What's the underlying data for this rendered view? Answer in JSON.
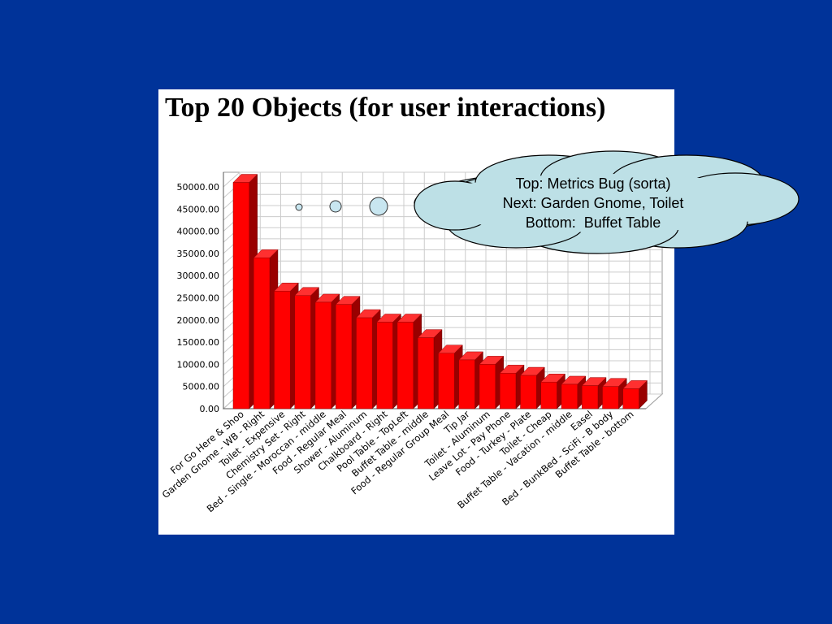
{
  "background_color": "#003399",
  "callout": {
    "lines": [
      "Top: Metrics Bug (sorta)",
      "Next: Garden Gnome, Toilet",
      "Bottom:  Buffet Table"
    ],
    "fill_color": "#bde0e6"
  },
  "chart_data": {
    "type": "bar",
    "title": "Top 20 Objects (for user interactions)",
    "xlabel": "",
    "ylabel": "",
    "ylim": [
      0,
      50000
    ],
    "grid": true,
    "style": "3d",
    "bar_color": "#ff0000",
    "y_tick_labels": [
      "0.00",
      "5000.00",
      "10000.00",
      "15000.00",
      "20000.00",
      "25000.00",
      "30000.00",
      "35000.00",
      "40000.00",
      "45000.00",
      "50000.00"
    ],
    "categories": [
      "For Go Here & Shoo",
      "Garden Gnome - WB - Right",
      "Toilet - Expensive",
      "Chemistry Set - Right",
      "Bed - Single - Moroccan - middle",
      "Food - Regular Meal",
      "Shower - Aluminum",
      "Chalkboard - Right",
      "Pool Table - TopLeft",
      "Buffet Table - middle",
      "Food - Regular Group Meal",
      "Tip Jar",
      "Toilet - Aluminum",
      "Leave Lot - Pay Phone",
      "Food - Turkey - Plate",
      "Toilet - Cheap",
      "Buffet Table - Vacation - middle",
      "Easel",
      "Bed - BunkBed - SciFi - B body",
      "Buffet Table - bottom"
    ],
    "values": [
      51000,
      34000,
      26500,
      25500,
      24000,
      23500,
      20500,
      19500,
      19500,
      16000,
      12500,
      11000,
      10000,
      8000,
      7500,
      6000,
      5500,
      5200,
      5000,
      4500
    ]
  }
}
